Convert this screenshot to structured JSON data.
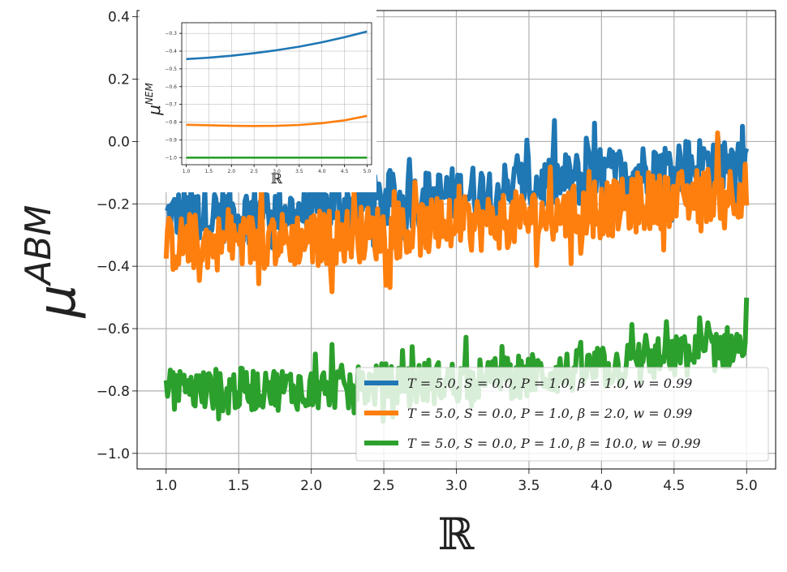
{
  "chart_data": [
    {
      "id": "main",
      "type": "line",
      "title": "",
      "xlabel": "ℝ",
      "ylabel": "μ",
      "ylabel_sup": "ABM",
      "xlim": [
        0.8,
        5.2
      ],
      "ylim": [
        -1.05,
        0.42
      ],
      "xticks": [
        1.0,
        1.5,
        2.0,
        2.5,
        3.0,
        3.5,
        4.0,
        4.5,
        5.0
      ],
      "xtick_labels": [
        "1.0",
        "1.5",
        "2.0",
        "2.5",
        "3.0",
        "3.5",
        "4.0",
        "4.5",
        "5.0"
      ],
      "yticks": [
        -1.0,
        -0.8,
        -0.6,
        -0.4,
        -0.2,
        0.0,
        0.2,
        0.4
      ],
      "ytick_labels": [
        "−1.0",
        "−0.8",
        "−0.6",
        "−0.4",
        "−0.2",
        "0.0",
        "0.2",
        "0.4"
      ],
      "grid": true,
      "legend_position": "bottom-right",
      "series": [
        {
          "name": "T = 5.0, S = 0.0, P = 1.0, β = 1.0, w = 0.99",
          "color": "#1f77b4",
          "x_range": [
            1.0,
            5.0
          ],
          "trend": [
            [
              1.0,
              -0.24
            ],
            [
              2.0,
              -0.22
            ],
            [
              3.0,
              -0.17
            ],
            [
              4.0,
              -0.11
            ],
            [
              5.0,
              -0.05
            ]
          ],
          "noise_amplitude": 0.13
        },
        {
          "name": "T = 5.0, S = 0.0, P = 1.0, β = 2.0, w = 0.99",
          "color": "#ff7f0e",
          "x_range": [
            1.0,
            5.0
          ],
          "trend": [
            [
              1.0,
              -0.33
            ],
            [
              2.0,
              -0.31
            ],
            [
              3.0,
              -0.27
            ],
            [
              4.0,
              -0.22
            ],
            [
              5.0,
              -0.15
            ]
          ],
          "noise_amplitude": 0.13
        },
        {
          "name": "T = 5.0, S = 0.0, P = 1.0, β = 10.0, w = 0.99",
          "color": "#2ca02c",
          "x_range": [
            1.0,
            5.0
          ],
          "trend": [
            [
              1.0,
              -0.8
            ],
            [
              2.0,
              -0.79
            ],
            [
              3.0,
              -0.77
            ],
            [
              4.0,
              -0.73
            ],
            [
              5.0,
              -0.65
            ]
          ],
          "noise_amplitude": 0.1
        }
      ]
    },
    {
      "id": "inset",
      "type": "line",
      "title": "",
      "xlabel": "ℝ",
      "ylabel": "μ",
      "ylabel_sup": "NEM",
      "xlim": [
        0.9,
        5.1
      ],
      "ylim": [
        -1.04,
        -0.24
      ],
      "xticks": [
        1.0,
        1.5,
        2.0,
        2.5,
        3.0,
        3.5,
        4.0,
        4.5,
        5.0
      ],
      "xtick_labels": [
        "1.0",
        "1.5",
        "2.0",
        "2.5",
        "3.0",
        "3.5",
        "4.0",
        "4.5",
        "5.0"
      ],
      "yticks": [
        -1.0,
        -0.9,
        -0.8,
        -0.7,
        -0.6,
        -0.5,
        -0.4,
        -0.3
      ],
      "ytick_labels": [
        "−1.0",
        "−0.9",
        "−0.8",
        "−0.7",
        "−0.6",
        "−0.5",
        "−0.4",
        "−0.3"
      ],
      "grid": true,
      "series": [
        {
          "name": "β = 1.0",
          "color": "#1f77b4",
          "x": [
            1.0,
            1.5,
            2.0,
            2.5,
            3.0,
            3.5,
            4.0,
            4.5,
            5.0
          ],
          "y": [
            -0.445,
            -0.437,
            -0.426,
            -0.412,
            -0.395,
            -0.375,
            -0.35,
            -0.322,
            -0.29
          ]
        },
        {
          "name": "β = 2.0",
          "color": "#ff7f0e",
          "x": [
            1.0,
            1.5,
            2.0,
            2.5,
            3.0,
            3.5,
            4.0,
            4.5,
            5.0
          ],
          "y": [
            -0.815,
            -0.818,
            -0.821,
            -0.822,
            -0.821,
            -0.816,
            -0.806,
            -0.79,
            -0.765
          ]
        },
        {
          "name": "β = 10.0",
          "color": "#2ca02c",
          "x": [
            1.0,
            1.5,
            2.0,
            2.5,
            3.0,
            3.5,
            4.0,
            4.5,
            5.0
          ],
          "y": [
            -1.0,
            -1.0,
            -1.0,
            -1.0,
            -1.0,
            -1.0,
            -1.0,
            -1.0,
            -1.0
          ]
        }
      ]
    }
  ]
}
